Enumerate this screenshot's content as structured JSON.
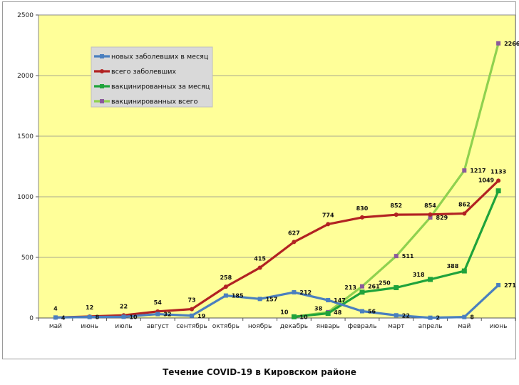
{
  "caption": "Течение COVID-19 в Кировском районе",
  "chart_data": {
    "type": "line",
    "categories": [
      "май",
      "июнь",
      "июль",
      "август",
      "сентябрь",
      "октябрь",
      "ноябрь",
      "декабрь",
      "январь",
      "февраль",
      "март",
      "апрель",
      "май",
      "июнь"
    ],
    "ylim": [
      0,
      2500
    ],
    "yticks": [
      0,
      500,
      1000,
      1500,
      2000,
      2500
    ],
    "grid": "horizontal",
    "legend_position": "top-left",
    "plot_background": "#ffff99",
    "series": [
      {
        "name": "новых заболевших в месяц",
        "color": "#4a7fbf",
        "marker": "square",
        "marker_color": "#4a7fbf",
        "values": [
          4,
          8,
          10,
          32,
          19,
          185,
          157,
          212,
          147,
          56,
          22,
          2,
          8,
          271
        ]
      },
      {
        "name": "всего заболевших",
        "color": "#b22222",
        "marker": "circle",
        "marker_color": "#b22222",
        "values": [
          4,
          12,
          22,
          54,
          73,
          258,
          415,
          627,
          774,
          830,
          852,
          854,
          862,
          1133
        ]
      },
      {
        "name": "вакцинированных за месяц",
        "color": "#1fa33b",
        "marker": "square",
        "marker_color": "#1fa33b",
        "values": [
          null,
          null,
          null,
          null,
          null,
          null,
          null,
          10,
          38,
          213,
          250,
          318,
          388,
          1049
        ]
      },
      {
        "name": "вакцинированных всего",
        "color": "#8fd14f",
        "marker": "square",
        "marker_color": "#8b5a9b",
        "values": [
          null,
          null,
          null,
          null,
          null,
          null,
          null,
          10,
          48,
          261,
          511,
          829,
          1217,
          2266
        ]
      }
    ]
  }
}
